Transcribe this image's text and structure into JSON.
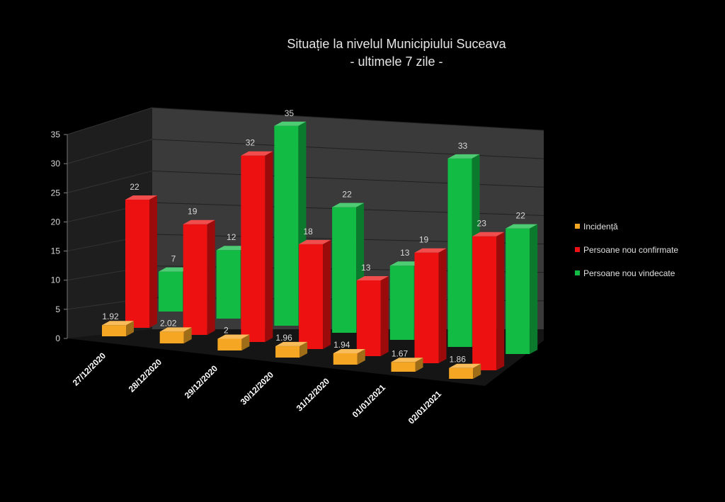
{
  "chart_data": {
    "type": "bar",
    "title_lines": [
      "Situație la nivelul Municipiului Suceava",
      "- ultimele 7 zile -"
    ],
    "categories": [
      "27/12/2020",
      "28/12/2020",
      "29/12/2020",
      "30/12/2020",
      "31/12/2020",
      "01/01/2021",
      "02/01/2021"
    ],
    "series": [
      {
        "name": "Incidență",
        "values": [
          1.92,
          2.02,
          2,
          1.96,
          1.94,
          1.67,
          1.86
        ],
        "color": "#f5a623"
      },
      {
        "name": "Persoane nou confirmate",
        "values": [
          22,
          19,
          32,
          18,
          13,
          19,
          23
        ],
        "color": "#ee1111"
      },
      {
        "name": "Persoane nou vindecate",
        "values": [
          7,
          12,
          35,
          22,
          13,
          33,
          22
        ],
        "color": "#11bb44"
      }
    ],
    "y_ticks": [
      "0",
      "5",
      "10",
      "15",
      "20",
      "25",
      "30",
      "35"
    ],
    "ylim": [
      0,
      35
    ],
    "grid": true,
    "legend_position": "right",
    "background": "#000000",
    "wall_color": "#3a3a3a"
  }
}
